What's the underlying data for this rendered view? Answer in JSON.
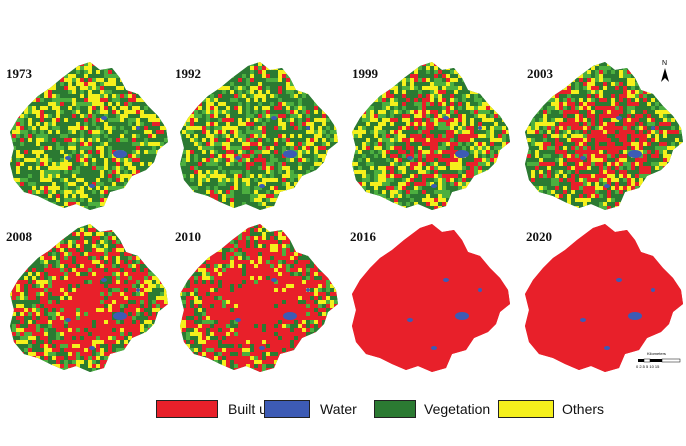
{
  "maps": [
    {
      "year": "1973",
      "built_up_level": 0.08
    },
    {
      "year": "1992",
      "built_up_level": 0.22
    },
    {
      "year": "1999",
      "built_up_level": 0.38
    },
    {
      "year": "2003",
      "built_up_level": 0.48
    },
    {
      "year": "2008",
      "built_up_level": 0.6
    },
    {
      "year": "2010",
      "built_up_level": 0.7
    },
    {
      "year": "2016",
      "built_up_level": 0.9
    },
    {
      "year": "2020",
      "built_up_level": 0.92
    }
  ],
  "north_arrow": {
    "label": "N"
  },
  "scale_bar": {
    "title": "Kilometers",
    "ticks": "0 2.5 5 10 15"
  },
  "legend": [
    {
      "label": "Built up",
      "color": "#e8202a"
    },
    {
      "label": "Water",
      "color": "#3d5bb5"
    },
    {
      "label": "Vegetation",
      "color": "#2b7a32"
    },
    {
      "label": "Others",
      "color": "#f5f01c"
    }
  ]
}
